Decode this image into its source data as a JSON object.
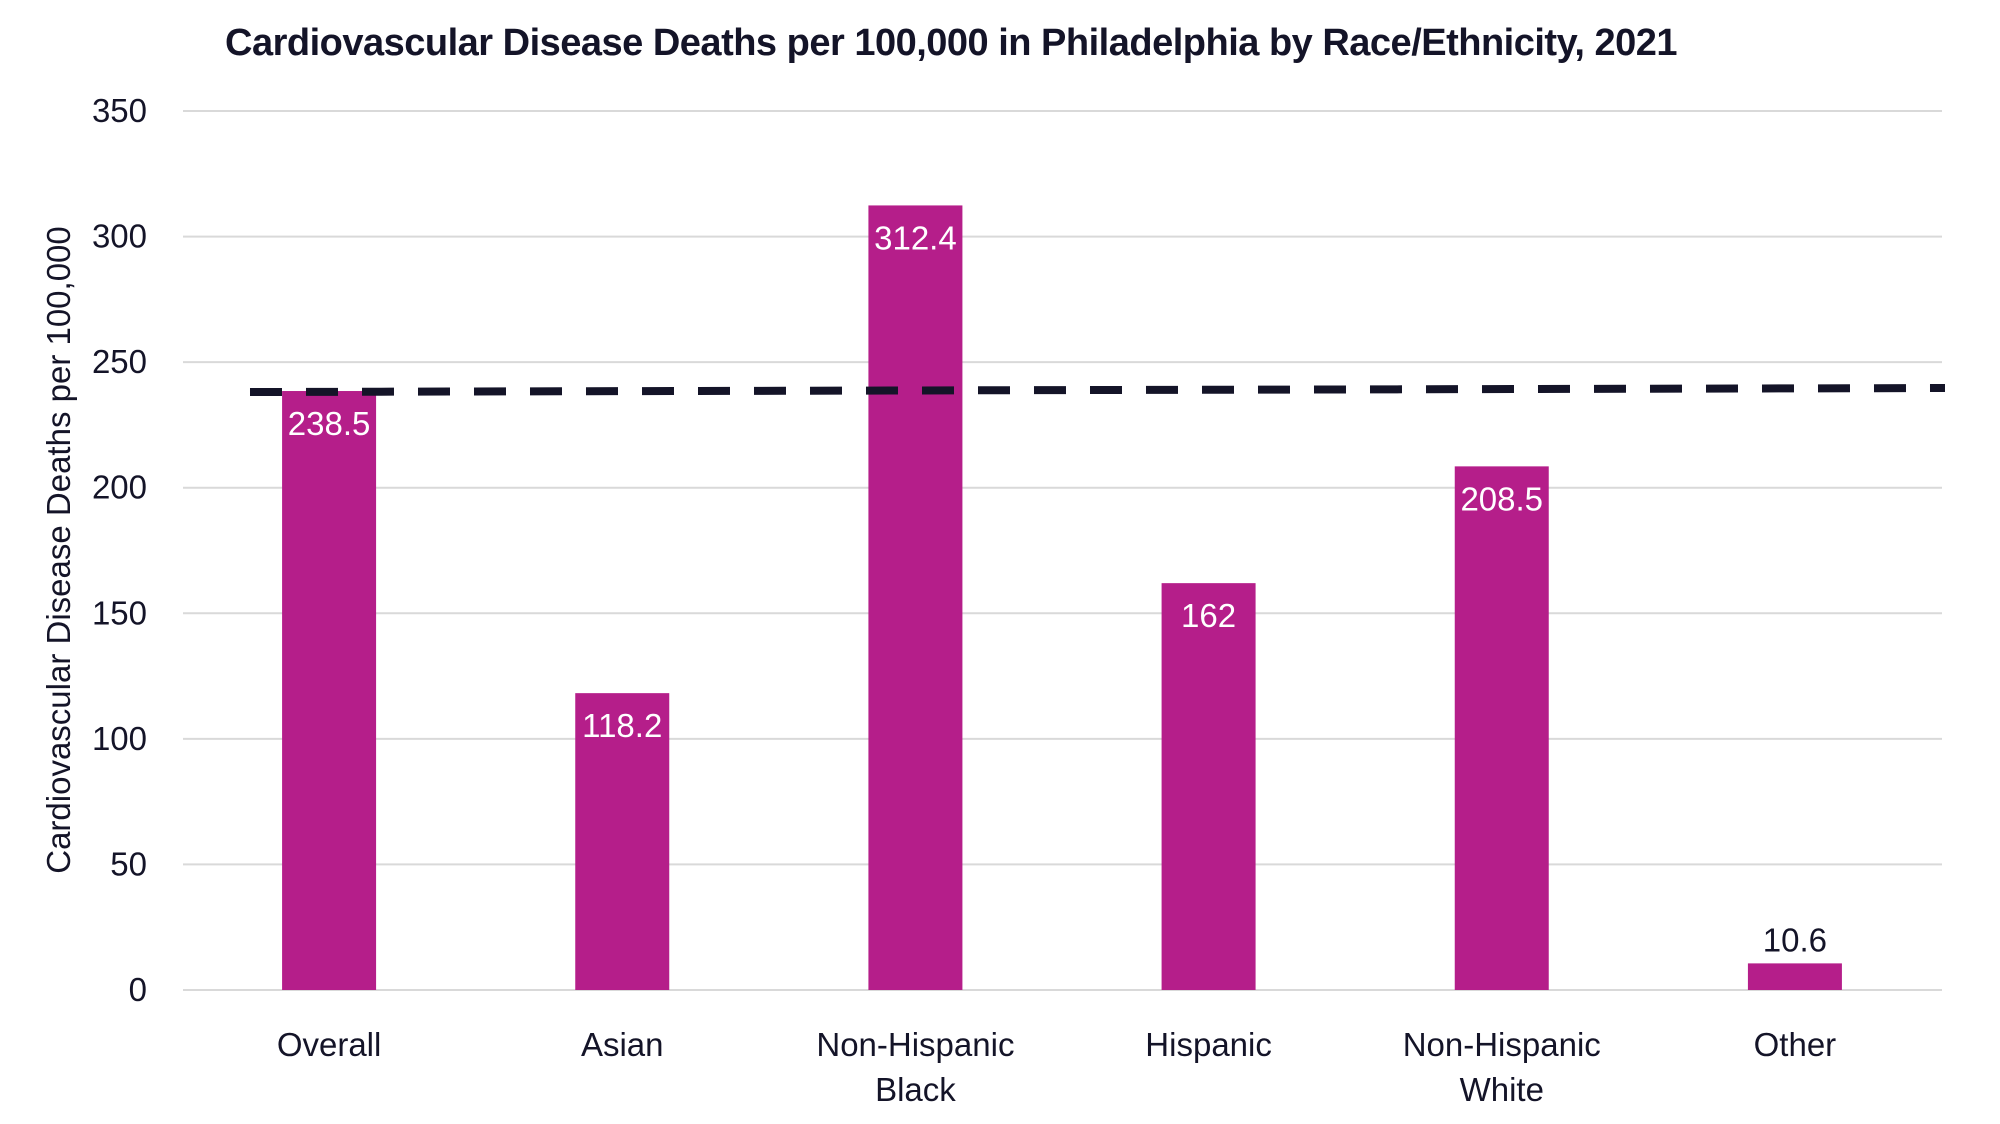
{
  "chart_data": {
    "type": "bar",
    "title": "Cardiovascular Disease Deaths per 100,000 in Philadelphia by Race/Ethnicity, 2021",
    "xlabel": "",
    "ylabel": "Cardiovascular Disease Deaths per 100,000",
    "ylim": [
      0,
      350
    ],
    "yticks": [
      0,
      50,
      100,
      150,
      200,
      250,
      300,
      350
    ],
    "grid": true,
    "categories": [
      [
        "Overall"
      ],
      [
        "Asian"
      ],
      [
        "Non-Hispanic",
        "Black"
      ],
      [
        "Hispanic"
      ],
      [
        "Non-Hispanic",
        "White"
      ],
      [
        "Other"
      ]
    ],
    "values": [
      238.5,
      118.2,
      312.4,
      162,
      208.5,
      10.6
    ],
    "data_labels": [
      "238.5",
      "118.2",
      "312.4",
      "162",
      "208.5",
      "10.6"
    ],
    "reference_line": {
      "style": "dashed",
      "value": 238.5
    },
    "colors": {
      "bar": "#B51E8A",
      "reference_line": "#141428",
      "grid": "#D9D9D9",
      "text": "#141428"
    }
  }
}
